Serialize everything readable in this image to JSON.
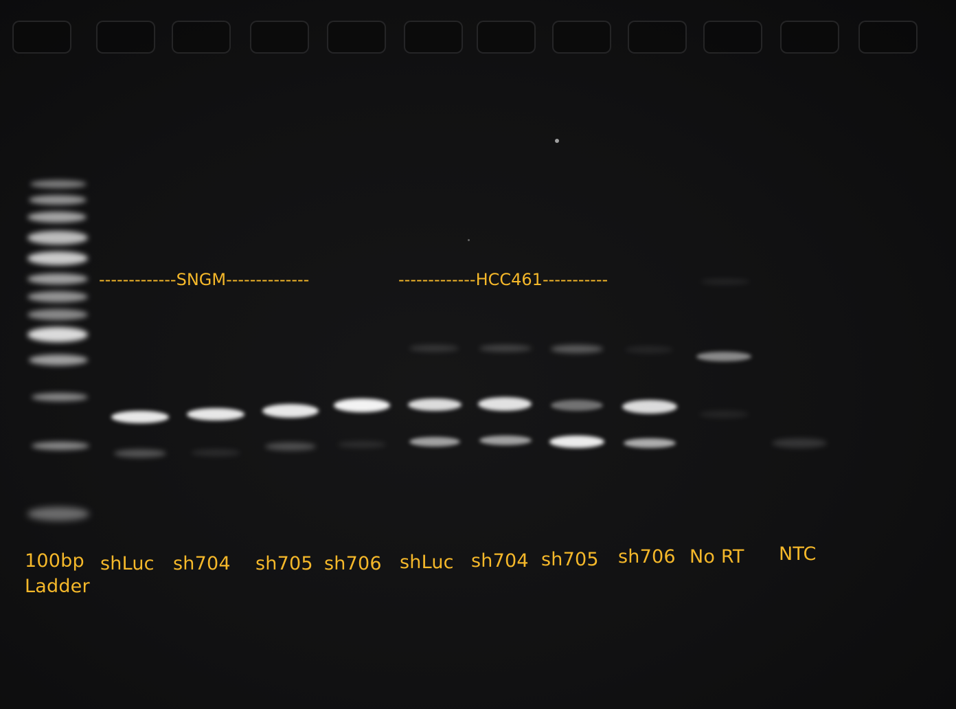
{
  "groups": {
    "sngm": "-------------SNGM--------------",
    "hcc461": "-------------HCC461-----------"
  },
  "lanes": [
    {
      "label_line1": "100bp",
      "label_line2": "Ladder"
    },
    {
      "label_line1": "shLuc"
    },
    {
      "label_line1": "sh704"
    },
    {
      "label_line1": "sh705"
    },
    {
      "label_line1": "sh706"
    },
    {
      "label_line1": "shLuc"
    },
    {
      "label_line1": "sh704"
    },
    {
      "label_line1": "sh705"
    },
    {
      "label_line1": "sh706"
    },
    {
      "label_line1": "No RT"
    },
    {
      "label_line1": "NTC"
    }
  ],
  "colors": {
    "label": "#f5b82a",
    "background": "#111112",
    "band": "#ffffff"
  }
}
